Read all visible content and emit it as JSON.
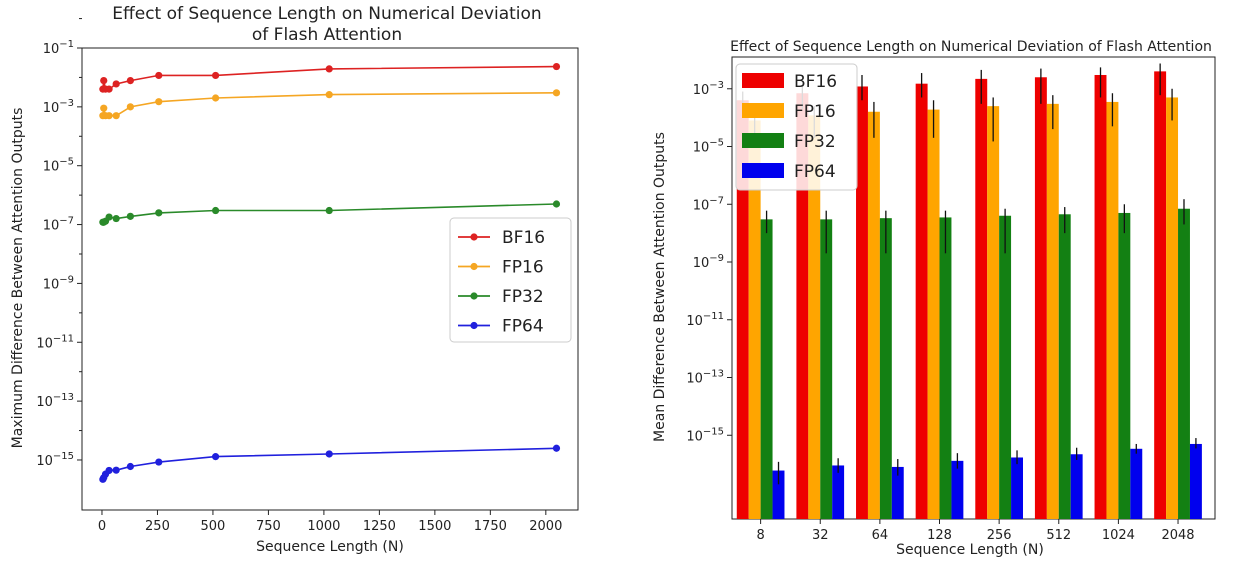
{
  "chart_data": [
    {
      "type": "line",
      "title_lines": [
        "Effect of Sequence Length on Numerical Deviation",
        "of Flash Attention"
      ],
      "xlabel": "Sequence Length (N)",
      "ylabel": "Maximum Difference Between Attention Outputs",
      "xlim": [
        -90,
        2145
      ],
      "ylim_log10": [
        -16.7,
        -1
      ],
      "xticks": [
        0,
        250,
        500,
        750,
        1000,
        1250,
        1500,
        1750,
        2000
      ],
      "xtick_labels": [
        "0",
        "250",
        "500",
        "750",
        "1000",
        "1250",
        "1500",
        "1750",
        "2000"
      ],
      "yticks_exp": [
        -15,
        -13,
        -11,
        -9,
        -7,
        -5,
        -3,
        -1
      ],
      "ytick_labels": [
        "10",
        "10",
        "10",
        "10",
        "10",
        "10",
        "10",
        "10"
      ],
      "ytick_sups": [
        "−15",
        "−13",
        "−11",
        "−9",
        "−7",
        "−5",
        "−3",
        "−1"
      ],
      "legend_position": "center-right",
      "series": [
        {
          "name": "BF16",
          "color": "#dd2222",
          "x": [
            4,
            8,
            16,
            32,
            64,
            128,
            256,
            512,
            1024,
            2048
          ],
          "values": [
            0.004,
            0.0078,
            0.004,
            0.004,
            0.006,
            0.0078,
            0.0117,
            0.0117,
            0.0195,
            0.0234
          ]
        },
        {
          "name": "FP16",
          "color": "#f5a623",
          "x": [
            4,
            8,
            16,
            32,
            64,
            128,
            256,
            512,
            1024,
            2048
          ],
          "values": [
            0.0005,
            0.0009,
            0.0005,
            0.0005,
            0.0005,
            0.001,
            0.0015,
            0.002,
            0.0026,
            0.003
          ]
        },
        {
          "name": "FP32",
          "color": "#2a8a2a",
          "x": [
            4,
            8,
            16,
            32,
            64,
            128,
            256,
            512,
            1024,
            2048
          ],
          "values": [
            1.2e-07,
            1.2e-07,
            1.3e-07,
            1.8e-07,
            1.6e-07,
            1.9e-07,
            2.5e-07,
            3e-07,
            3e-07,
            5e-07
          ]
        },
        {
          "name": "FP64",
          "color": "#2020dd",
          "x": [
            4,
            8,
            16,
            32,
            64,
            128,
            256,
            512,
            1024,
            2048
          ],
          "values": [
            2.2e-16,
            2.5e-16,
            3.3e-16,
            4.4e-16,
            4.5e-16,
            6e-16,
            8.5e-16,
            1.3e-15,
            1.6e-15,
            2.5e-15
          ]
        }
      ]
    },
    {
      "type": "bar",
      "title": "Effect of Sequence Length on Numerical Deviation of Flash Attention",
      "xlabel": "Sequence Length (N)",
      "ylabel": "Mean Difference Between Attention Outputs",
      "categories": [
        "8",
        "32",
        "64",
        "128",
        "256",
        "512",
        "1024",
        "2048"
      ],
      "ylim_log10": [
        -17.9,
        -1.9
      ],
      "yticks_exp": [
        -15,
        -13,
        -11,
        -9,
        -7,
        -5,
        -3
      ],
      "ytick_labels": [
        "10",
        "10",
        "10",
        "10",
        "10",
        "10",
        "10"
      ],
      "ytick_sups": [
        "−15",
        "−13",
        "−11",
        "−9",
        "−7",
        "−5",
        "−3"
      ],
      "legend_position": "top-left",
      "series": [
        {
          "name": "BF16",
          "color": "#ee0000",
          "values": [
            0.0004,
            0.0007,
            0.0012,
            0.0015,
            0.0022,
            0.0025,
            0.003,
            0.004
          ],
          "err_low": [
            0.0001,
            0.0002,
            0.0004,
            0.0005,
            0.0003,
            0.0003,
            0.0005,
            0.0006
          ],
          "err_high": [
            0.0008,
            0.0012,
            0.003,
            0.0035,
            0.0045,
            0.005,
            0.0055,
            0.0075
          ]
        },
        {
          "name": "FP16",
          "color": "#ffa500",
          "values": [
            8e-05,
            0.00012,
            0.00016,
            0.00019,
            0.00025,
            0.0003,
            0.00035,
            0.0005
          ],
          "err_low": [
            1e-05,
            2e-05,
            2e-05,
            2e-05,
            1.5e-05,
            4e-05,
            5e-05,
            8e-05
          ],
          "err_high": [
            0.00015,
            0.00025,
            0.00035,
            0.0004,
            0.0005,
            0.0006,
            0.0007,
            0.001
          ]
        },
        {
          "name": "FP32",
          "color": "#138013",
          "values": [
            3e-08,
            3e-08,
            3.3e-08,
            3.5e-08,
            4e-08,
            4.5e-08,
            5e-08,
            7e-08
          ],
          "err_low": [
            1e-08,
            2e-09,
            2e-09,
            2e-09,
            2e-09,
            1e-08,
            1e-08,
            2e-08
          ],
          "err_high": [
            6e-08,
            6e-08,
            6e-08,
            6e-08,
            7e-08,
            8e-08,
            1e-07,
            1.5e-07
          ]
        },
        {
          "name": "FP64",
          "color": "#0000ee",
          "values": [
            6e-17,
            9e-17,
            8e-17,
            1.3e-16,
            1.7e-16,
            2.2e-16,
            3.4e-16,
            5e-16
          ],
          "err_low": [
            2e-17,
            5e-17,
            4e-17,
            7e-17,
            1e-16,
            1.4e-16,
            2.3e-16,
            3.5e-16
          ],
          "err_high": [
            1.2e-16,
            1.6e-16,
            1.5e-16,
            2.4e-16,
            3e-16,
            3.7e-16,
            5e-16,
            8e-16
          ]
        }
      ]
    }
  ]
}
